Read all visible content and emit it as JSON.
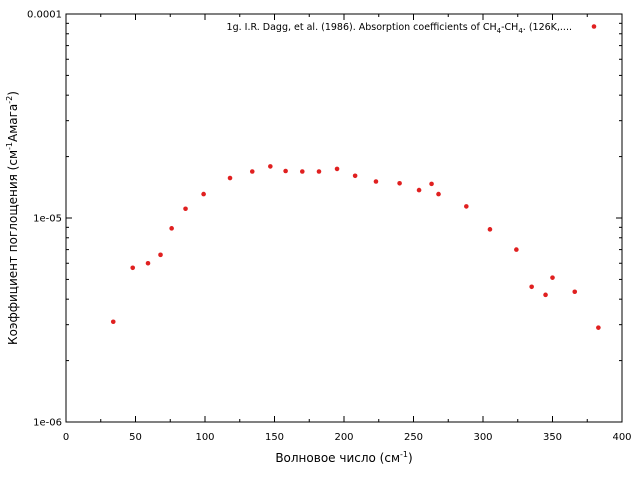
{
  "chart_data": {
    "type": "scatter",
    "xlabel": "Волновое число (см",
    "xlabel_sup": "-1",
    "xlabel_end": ")",
    "ylabel": "Коэффициент поглощения (см",
    "ylabel_sup1": "-1",
    "ylabel_mid": "Амага",
    "ylabel_sup2": "-2",
    "ylabel_end": ")",
    "xlim": [
      0,
      400
    ],
    "ylim": [
      1e-06,
      0.0001
    ],
    "yscale": "log",
    "x_ticks": [
      "0",
      "50",
      "100",
      "150",
      "200",
      "250",
      "300",
      "350",
      "400"
    ],
    "y_ticks": [
      "1e-06",
      "1e-05",
      "0.0001"
    ],
    "legend": {
      "position": "top-right",
      "label_pre": "1g. I.R. Dagg, et al. (1986). Absorption coefficients of CH",
      "label_sub1": "4",
      "label_mid": "-CH",
      "label_sub2": "4",
      "label_post": ". (126K,....",
      "color": "#e02020"
    },
    "series": [
      {
        "color": "#e02020",
        "x": [
          34,
          48,
          59,
          68,
          76,
          86,
          99,
          118,
          134,
          147,
          158,
          170,
          182,
          195,
          208,
          223,
          240,
          254,
          263,
          268,
          288,
          305,
          324,
          335,
          345,
          350,
          366,
          383
        ],
        "y": [
          3.1e-06,
          5.7e-06,
          6e-06,
          6.6e-06,
          8.9e-06,
          1.11e-05,
          1.31e-05,
          1.57e-05,
          1.69e-05,
          1.79e-05,
          1.7e-05,
          1.69e-05,
          1.69e-05,
          1.74e-05,
          1.61e-05,
          1.51e-05,
          1.48e-05,
          1.37e-05,
          1.47e-05,
          1.31e-05,
          1.14e-05,
          8.8e-06,
          7e-06,
          4.6e-06,
          4.2e-06,
          5.1e-06,
          4.35e-06,
          2.9e-06
        ]
      }
    ]
  }
}
